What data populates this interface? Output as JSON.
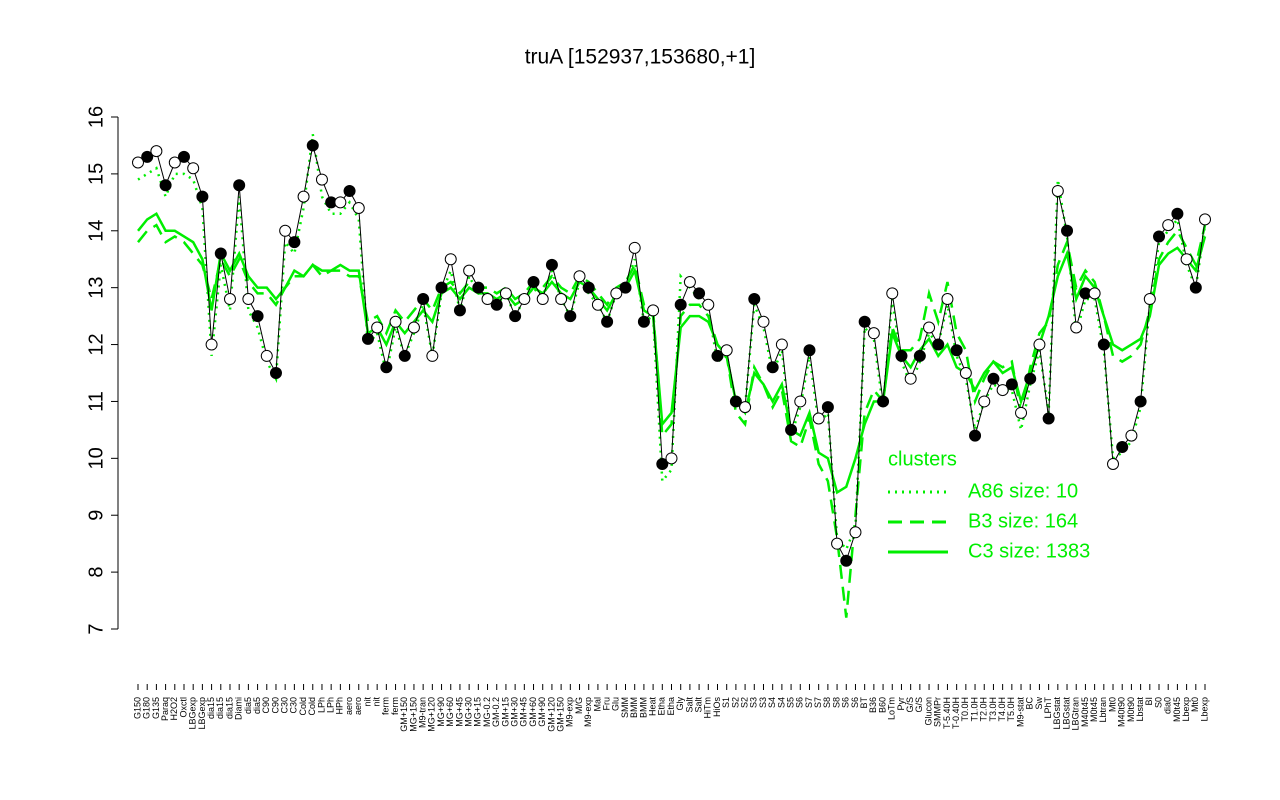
{
  "chart_data": {
    "type": "line",
    "title": "truA [152937,153680,+1]",
    "categories": [
      "G150",
      "G180",
      "G135",
      "Paraq",
      "H2O2",
      "Oxctl",
      "LBGexp",
      "LBGexp",
      "dia15",
      "dia15",
      "dia15",
      "Diami",
      "dia5",
      "dia5",
      "C90",
      "C90",
      "C30",
      "C30",
      "Cold",
      "Cold",
      "LPh",
      "LPh",
      "HPh",
      "aero",
      "aero",
      "nit",
      "nit",
      "ferm",
      "ferm",
      "GM+150",
      "MG+150",
      "M9-tran",
      "MG+120",
      "MG+90",
      "MG+60",
      "MG+45",
      "MG+30",
      "MG+15",
      "MG-0.2",
      "GM-0.2",
      "GM+15",
      "GM+30",
      "GM+45",
      "GM+60",
      "GM+90",
      "GM+120",
      "GM+150",
      "M9-exp",
      "M/G",
      "M9-exp",
      "Mal",
      "Fru",
      "Glu",
      "SMM",
      "BMM",
      "BMM",
      "Heat",
      "Etha",
      "Etha",
      "Gly",
      "Salt",
      "Salt",
      "HiTm",
      "HiOs",
      "S1",
      "S2",
      "S2",
      "S3",
      "S3",
      "S4",
      "S4",
      "S5",
      "S6",
      "S7",
      "S7",
      "S8",
      "S8",
      "S6",
      "S6",
      "BT",
      "B36",
      "B60",
      "LoTm",
      "Pyr",
      "G/S",
      "G/S",
      "Glucon",
      "SMMPr",
      "T-5.40H",
      "T-0.40H",
      "T0.0H",
      "T1.0H",
      "T2.0H",
      "T3.0H",
      "T4.0H",
      "T5.0H",
      "M9-stat",
      "BC",
      "Sw",
      "LPhT",
      "LBGstat",
      "LBGstat",
      "LBGtran",
      "M40t45",
      "M0t45",
      "Lbtran",
      "Mt0",
      "M40t90",
      "M0t90",
      "Lbstat",
      "BI",
      "S0",
      "dia0",
      "M0t45",
      "Lbexp",
      "Mt0",
      "Lbexp"
    ],
    "values": [
      15.2,
      15.3,
      15.4,
      14.8,
      15.2,
      15.3,
      15.1,
      14.6,
      12.0,
      13.6,
      12.8,
      14.8,
      12.8,
      12.5,
      11.8,
      11.5,
      14.0,
      13.8,
      14.6,
      15.5,
      14.9,
      14.5,
      14.5,
      14.7,
      14.4,
      12.1,
      12.3,
      11.6,
      12.4,
      11.8,
      12.3,
      12.8,
      11.8,
      13.0,
      13.5,
      12.6,
      13.3,
      13.0,
      12.8,
      12.7,
      12.9,
      12.5,
      12.8,
      13.1,
      12.8,
      13.4,
      12.8,
      12.5,
      13.2,
      13.0,
      12.7,
      12.4,
      12.9,
      13.0,
      13.7,
      12.4,
      12.6,
      9.9,
      10.0,
      12.7,
      13.1,
      12.9,
      12.7,
      11.8,
      11.9,
      11.0,
      10.9,
      12.8,
      12.4,
      11.6,
      12.0,
      10.5,
      11.0,
      11.9,
      10.7,
      10.9,
      8.5,
      8.2,
      8.7,
      12.4,
      12.2,
      11.0,
      12.9,
      11.8,
      11.4,
      11.8,
      12.3,
      12.0,
      12.8,
      11.9,
      11.5,
      10.4,
      11.0,
      11.4,
      11.2,
      11.3,
      10.8,
      11.4,
      12.0,
      10.7,
      14.7,
      14.0,
      12.3,
      12.9,
      12.9,
      12.0,
      9.9,
      10.2,
      10.4,
      11.0,
      12.8,
      13.9,
      14.1,
      14.3,
      13.5,
      13.0,
      14.2
    ],
    "color": "#000000",
    "series": [
      {
        "name": "A86 size: 10",
        "color": "#00ee00",
        "linestyle": "dotted",
        "values": [
          14.9,
          15.0,
          15.1,
          14.6,
          15.0,
          15.0,
          14.9,
          14.4,
          11.8,
          13.4,
          12.6,
          14.6,
          12.6,
          12.3,
          11.7,
          11.4,
          13.8,
          13.6,
          14.4,
          15.7,
          14.6,
          14.3,
          14.3,
          14.5,
          14.2,
          12.0,
          12.2,
          11.5,
          12.3,
          11.8,
          12.2,
          12.7,
          11.8,
          12.9,
          13.3,
          12.6,
          13.2,
          12.9,
          12.8,
          12.7,
          12.9,
          12.5,
          12.8,
          13.0,
          12.8,
          13.3,
          12.8,
          12.5,
          13.1,
          12.9,
          12.7,
          12.4,
          12.9,
          13.0,
          13.5,
          12.4,
          12.5,
          9.6,
          9.8,
          13.2,
          13.0,
          12.8,
          12.6,
          11.7,
          11.8,
          11.0,
          10.9,
          12.7,
          12.3,
          11.5,
          11.9,
          10.4,
          10.9,
          11.8,
          10.6,
          10.8,
          8.6,
          8.4,
          8.8,
          12.3,
          12.1,
          10.9,
          12.8,
          11.7,
          11.3,
          11.7,
          12.2,
          12.0,
          12.7,
          11.8,
          11.4,
          10.5,
          11.0,
          11.3,
          11.2,
          11.2,
          10.5,
          11.3,
          11.9,
          10.8,
          14.9,
          13.9,
          12.2,
          12.8,
          12.8,
          11.9,
          10.0,
          10.1,
          10.3,
          10.9,
          12.7,
          13.8,
          14.0,
          14.2,
          13.4,
          13.0,
          14.1
        ]
      },
      {
        "name": "B3 size: 164",
        "color": "#00ee00",
        "linestyle": "dashed",
        "values": [
          13.8,
          14.0,
          14.1,
          13.8,
          13.9,
          13.8,
          13.6,
          13.4,
          12.8,
          13.5,
          13.2,
          13.5,
          13.1,
          12.9,
          12.9,
          12.7,
          13.0,
          13.2,
          13.2,
          13.4,
          13.2,
          13.3,
          13.3,
          13.2,
          13.2,
          12.4,
          12.5,
          12.2,
          12.6,
          12.4,
          12.6,
          12.8,
          12.6,
          13.0,
          13.1,
          12.9,
          13.1,
          13.0,
          13.0,
          12.9,
          13.0,
          12.8,
          12.9,
          13.1,
          13.0,
          13.2,
          13.0,
          12.9,
          13.2,
          13.1,
          12.9,
          12.7,
          13.0,
          13.1,
          13.4,
          12.7,
          12.6,
          10.4,
          10.6,
          12.5,
          12.7,
          12.7,
          12.5,
          12.0,
          11.8,
          10.8,
          10.6,
          11.6,
          11.3,
          10.9,
          11.2,
          10.3,
          10.2,
          10.7,
          9.9,
          9.6,
          8.6,
          7.2,
          9.0,
          10.8,
          11.2,
          11.0,
          12.3,
          11.9,
          11.9,
          12.1,
          12.9,
          12.4,
          13.1,
          12.2,
          11.9,
          11.0,
          11.4,
          11.7,
          11.6,
          11.7,
          10.8,
          11.6,
          12.2,
          12.4,
          13.4,
          13.8,
          13.0,
          13.3,
          13.1,
          12.5,
          11.8,
          11.7,
          11.8,
          12.0,
          12.6,
          13.5,
          13.8,
          14.0,
          13.7,
          13.4,
          14.1
        ]
      },
      {
        "name": "C3 size: 1383",
        "color": "#00ee00",
        "linestyle": "solid",
        "values": [
          14.0,
          14.2,
          14.3,
          14.0,
          14.0,
          13.9,
          13.8,
          13.5,
          12.6,
          13.6,
          13.3,
          13.6,
          13.2,
          13.0,
          13.0,
          12.8,
          13.0,
          13.3,
          13.2,
          13.4,
          13.3,
          13.3,
          13.4,
          13.3,
          13.3,
          12.2,
          12.3,
          12.0,
          12.4,
          12.2,
          12.4,
          12.6,
          12.4,
          12.9,
          13.0,
          12.8,
          13.0,
          12.9,
          12.9,
          12.8,
          12.9,
          12.7,
          12.8,
          13.0,
          12.9,
          13.1,
          12.9,
          12.8,
          13.1,
          13.0,
          12.8,
          12.6,
          12.9,
          13.0,
          13.3,
          12.6,
          12.5,
          10.6,
          10.8,
          12.3,
          12.5,
          12.5,
          12.4,
          12.0,
          11.8,
          11.0,
          10.8,
          11.5,
          11.3,
          11.0,
          11.3,
          10.5,
          10.4,
          10.8,
          10.1,
          10.0,
          9.4,
          9.5,
          10.0,
          10.6,
          11.0,
          11.0,
          12.2,
          11.8,
          11.6,
          11.9,
          12.1,
          11.8,
          12.0,
          11.6,
          11.5,
          11.2,
          11.5,
          11.7,
          11.5,
          11.6,
          11.0,
          11.5,
          12.0,
          12.5,
          13.2,
          13.6,
          12.8,
          13.2,
          13.0,
          12.5,
          12.0,
          11.9,
          12.0,
          12.1,
          12.5,
          13.4,
          13.6,
          13.7,
          13.5,
          13.3,
          13.9
        ]
      }
    ],
    "legend_title": "clusters",
    "ylim": [
      7,
      16
    ],
    "yticks": [
      7,
      8,
      9,
      10,
      11,
      12,
      13,
      14,
      15,
      16
    ]
  }
}
